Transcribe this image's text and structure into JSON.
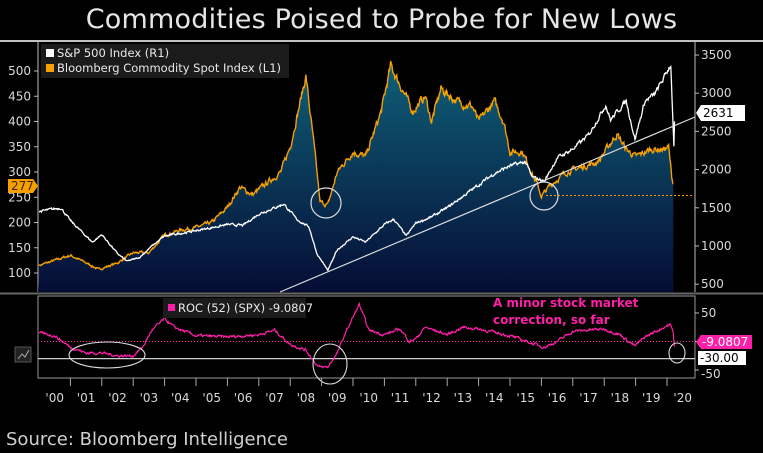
{
  "title": "Commodities Poised to Probe for New Lows",
  "source": "Source: Bloomberg Intelligence",
  "colors": {
    "sp500": "#ffffff",
    "commodity": "#f5a000",
    "roc": "#ff1fa8",
    "area_top": "#0f6078",
    "area_bottom": "#050d35",
    "background": "#000000"
  },
  "chart_data": [
    {
      "type": "line",
      "panel": "upper",
      "legend": {
        "placement": "top-left"
      },
      "series": [
        {
          "name": "S&P 500 Index  (R1)",
          "axis": "right",
          "color": "#ffffff",
          "last_value": "2631",
          "points": [
            [
              2000.0,
              1450
            ],
            [
              2000.7,
              1500
            ],
            [
              2001.0,
              1330
            ],
            [
              2001.7,
              1050
            ],
            [
              2002.0,
              1150
            ],
            [
              2002.5,
              900
            ],
            [
              2002.8,
              800
            ],
            [
              2003.2,
              850
            ],
            [
              2003.6,
              1000
            ],
            [
              2004.0,
              1130
            ],
            [
              2005.0,
              1200
            ],
            [
              2006.0,
              1280
            ],
            [
              2006.5,
              1270
            ],
            [
              2007.0,
              1420
            ],
            [
              2007.8,
              1550
            ],
            [
              2008.2,
              1350
            ],
            [
              2008.6,
              1250
            ],
            [
              2008.85,
              900
            ],
            [
              2009.2,
              680
            ],
            [
              2009.5,
              950
            ],
            [
              2010.0,
              1120
            ],
            [
              2010.4,
              1050
            ],
            [
              2011.0,
              1280
            ],
            [
              2011.3,
              1350
            ],
            [
              2011.7,
              1130
            ],
            [
              2012.0,
              1300
            ],
            [
              2012.5,
              1380
            ],
            [
              2013.0,
              1500
            ],
            [
              2013.5,
              1650
            ],
            [
              2014.0,
              1800
            ],
            [
              2014.5,
              1950
            ],
            [
              2015.0,
              2050
            ],
            [
              2015.5,
              2100
            ],
            [
              2015.7,
              1900
            ],
            [
              2016.1,
              1850
            ],
            [
              2016.5,
              2150
            ],
            [
              2017.0,
              2270
            ],
            [
              2017.5,
              2450
            ],
            [
              2018.05,
              2850
            ],
            [
              2018.2,
              2650
            ],
            [
              2018.7,
              2900
            ],
            [
              2018.98,
              2400
            ],
            [
              2019.3,
              2900
            ],
            [
              2019.6,
              2980
            ],
            [
              2019.9,
              3200
            ],
            [
              2020.12,
              3380
            ],
            [
              2020.22,
              2300
            ],
            [
              2020.24,
              2631
            ]
          ]
        },
        {
          "name": "Bloomberg Commodity Spot Index (L1)",
          "axis": "left",
          "color": "#f5a000",
          "fill": "area",
          "last_value": "277",
          "points": [
            [
              2000.0,
              115
            ],
            [
              2000.5,
              125
            ],
            [
              2001.0,
              135
            ],
            [
              2001.5,
              120
            ],
            [
              2001.9,
              107
            ],
            [
              2002.5,
              120
            ],
            [
              2003.0,
              140
            ],
            [
              2003.5,
              140
            ],
            [
              2004.0,
              175
            ],
            [
              2004.5,
              185
            ],
            [
              2005.0,
              190
            ],
            [
              2005.5,
              200
            ],
            [
              2006.0,
              230
            ],
            [
              2006.4,
              270
            ],
            [
              2006.8,
              255
            ],
            [
              2007.2,
              275
            ],
            [
              2007.7,
              300
            ],
            [
              2008.0,
              350
            ],
            [
              2008.5,
              490
            ],
            [
              2008.8,
              330
            ],
            [
              2008.95,
              240
            ],
            [
              2009.2,
              235
            ],
            [
              2009.5,
              300
            ],
            [
              2010.0,
              340
            ],
            [
              2010.4,
              330
            ],
            [
              2010.9,
              420
            ],
            [
              2011.2,
              510
            ],
            [
              2011.6,
              460
            ],
            [
              2011.9,
              420
            ],
            [
              2012.3,
              450
            ],
            [
              2012.5,
              400
            ],
            [
              2012.8,
              465
            ],
            [
              2013.3,
              440
            ],
            [
              2013.8,
              430
            ],
            [
              2014.0,
              400
            ],
            [
              2014.5,
              440
            ],
            [
              2014.8,
              400
            ],
            [
              2015.0,
              340
            ],
            [
              2015.4,
              340
            ],
            [
              2015.9,
              270
            ],
            [
              2016.0,
              252
            ],
            [
              2016.3,
              275
            ],
            [
              2016.8,
              300
            ],
            [
              2017.3,
              310
            ],
            [
              2017.8,
              320
            ],
            [
              2018.4,
              375
            ],
            [
              2018.7,
              345
            ],
            [
              2019.0,
              330
            ],
            [
              2019.5,
              345
            ],
            [
              2019.9,
              345
            ],
            [
              2020.05,
              350
            ],
            [
              2020.15,
              290
            ],
            [
              2020.2,
              277
            ]
          ]
        }
      ],
      "left_axis": {
        "ticks": [
          100,
          150,
          200,
          250,
          300,
          350,
          400,
          450,
          500
        ],
        "range": [
          60,
          540
        ]
      },
      "right_axis": {
        "ticks": [
          500,
          1000,
          1500,
          2000,
          2500,
          3000,
          3500
        ],
        "range": [
          400,
          3700
        ]
      },
      "annotations": {
        "trendline": "S&P 500 rising support line from 2009 low",
        "circles": [
          "2009 commodity low",
          "2016 commodity low"
        ],
        "dotted_level": "2016 commodity low"
      }
    },
    {
      "type": "line",
      "panel": "lower",
      "series": [
        {
          "name": "ROC (52) (SPX)",
          "legend_label": "ROC (52) (SPX) -9.0807",
          "color": "#ff1fa8",
          "last_value": "-9.0807",
          "points": [
            [
              2000.0,
              15
            ],
            [
              2000.5,
              10
            ],
            [
              2001.0,
              -10
            ],
            [
              2001.5,
              -20
            ],
            [
              2002.0,
              -20
            ],
            [
              2002.5,
              -25
            ],
            [
              2003.0,
              -25
            ],
            [
              2003.3,
              -10
            ],
            [
              2003.6,
              20
            ],
            [
              2004.0,
              40
            ],
            [
              2004.3,
              25
            ],
            [
              2005.0,
              10
            ],
            [
              2006.0,
              8
            ],
            [
              2007.0,
              12
            ],
            [
              2007.5,
              20
            ],
            [
              2008.0,
              -5
            ],
            [
              2008.5,
              -15
            ],
            [
              2008.9,
              -45
            ],
            [
              2009.2,
              -45
            ],
            [
              2009.5,
              -20
            ],
            [
              2009.8,
              20
            ],
            [
              2010.2,
              65
            ],
            [
              2010.5,
              20
            ],
            [
              2011.0,
              12
            ],
            [
              2011.5,
              22
            ],
            [
              2011.8,
              0
            ],
            [
              2012.0,
              5
            ],
            [
              2012.3,
              25
            ],
            [
              2013.0,
              12
            ],
            [
              2013.5,
              25
            ],
            [
              2014.0,
              22
            ],
            [
              2015.0,
              10
            ],
            [
              2015.8,
              -5
            ],
            [
              2016.1,
              -10
            ],
            [
              2016.5,
              0
            ],
            [
              2017.0,
              18
            ],
            [
              2018.0,
              22
            ],
            [
              2018.5,
              12
            ],
            [
              2018.98,
              -8
            ],
            [
              2019.3,
              8
            ],
            [
              2019.9,
              25
            ],
            [
              2020.1,
              30
            ],
            [
              2020.2,
              15
            ],
            [
              2020.24,
              -9.08
            ]
          ]
        }
      ],
      "right_axis": {
        "ticks": [
          50,
          0,
          -50
        ],
        "tick_labels": [
          "50",
          "",
          "-50"
        ],
        "range": [
          -65,
          75
        ]
      },
      "reference_lines": [
        {
          "value": 0,
          "style": "dotted",
          "color": "#ff1fa8"
        },
        {
          "value": -30,
          "label": "-30.00",
          "color": "#cccccc"
        }
      ],
      "annotation_text": [
        "A minor stock market",
        "correction, so far"
      ]
    }
  ],
  "x_axis": {
    "tick_labels": [
      "'00",
      "'01",
      "'02",
      "'03",
      "'04",
      "'05",
      "'06",
      "'07",
      "'08",
      "'09",
      "'10",
      "'11",
      "'12",
      "'13",
      "'14",
      "'15",
      "'16",
      "'17",
      "'18",
      "'19",
      "'20"
    ],
    "range": [
      2000,
      2020.3
    ]
  }
}
